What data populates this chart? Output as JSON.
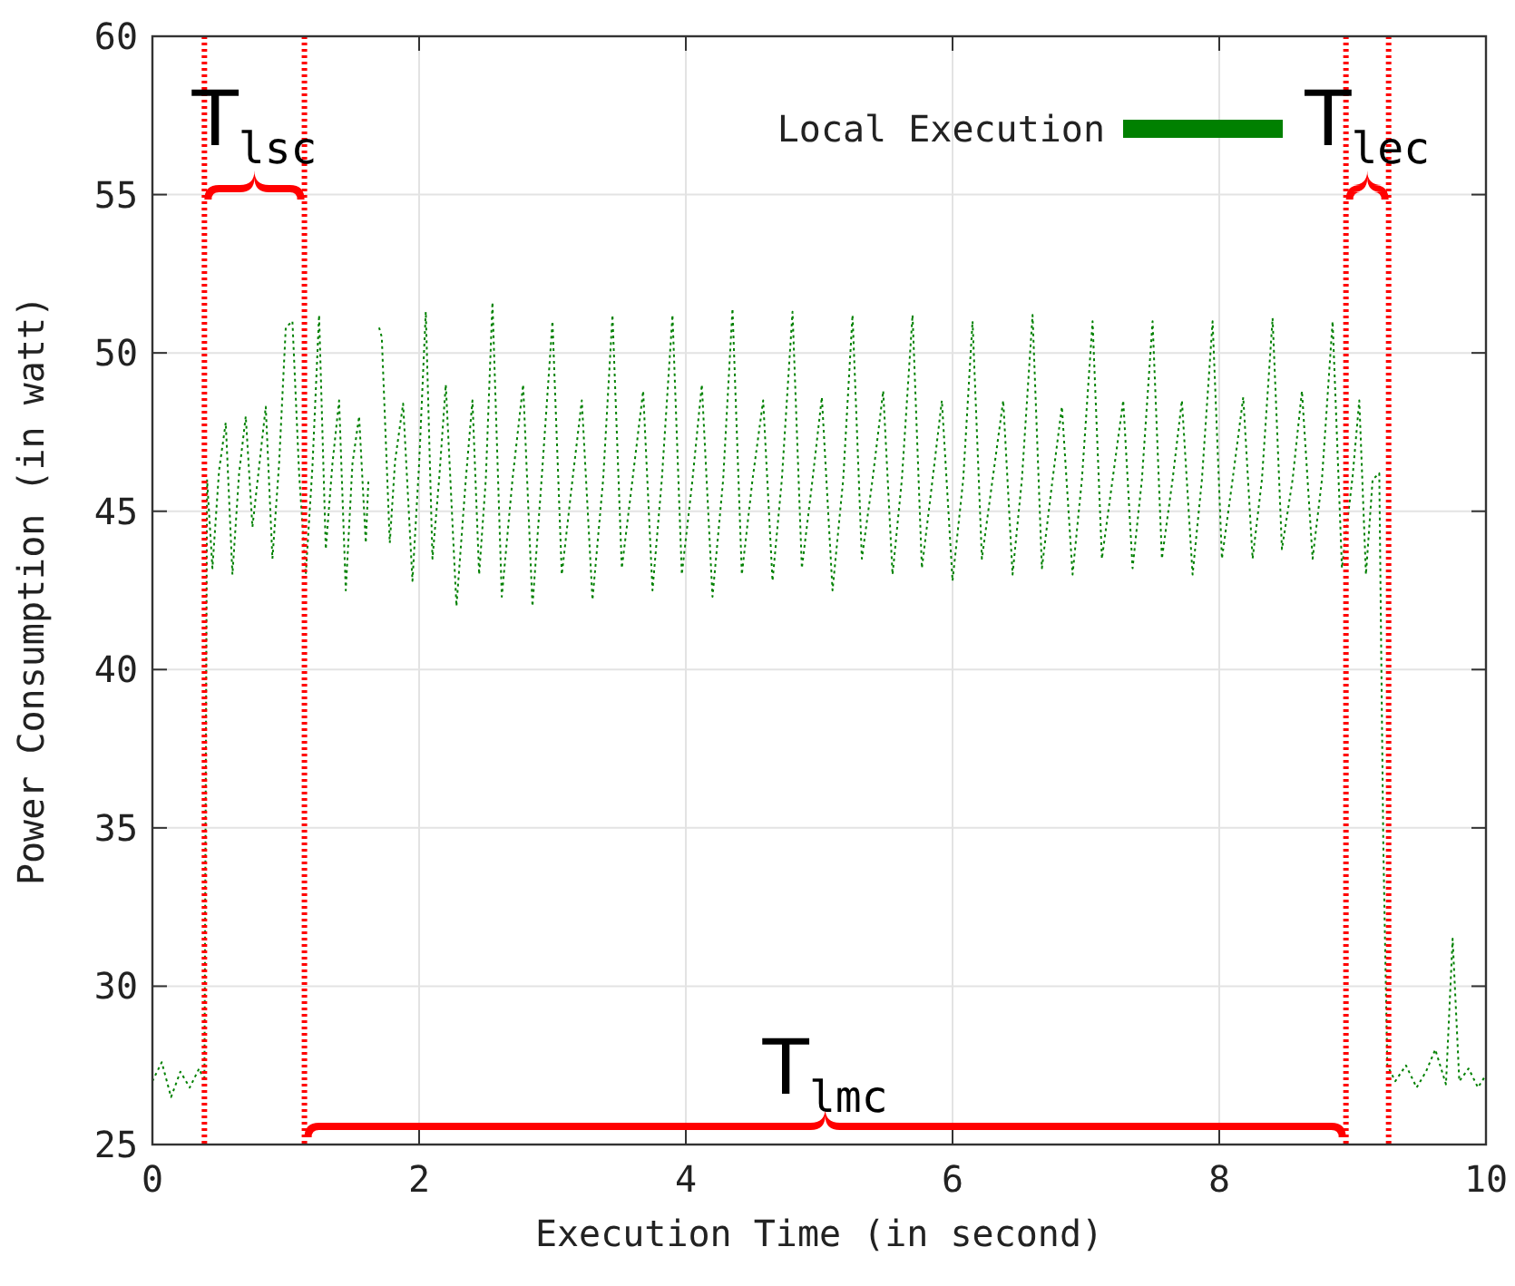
{
  "chart_data": {
    "type": "line",
    "xlabel": "Execution Time (in second)",
    "ylabel": "Power Consumption (in watt)",
    "xlim": [
      0,
      10
    ],
    "xticks": [
      0,
      2,
      4,
      6,
      8,
      10
    ],
    "ylim": [
      25,
      60
    ],
    "yticks": [
      25,
      30,
      35,
      40,
      45,
      50,
      55,
      60
    ],
    "grid": true,
    "legend": "top right",
    "line_style": "dotted",
    "marker": "none",
    "series": [
      {
        "name": "Local Execution",
        "color": "#008000",
        "x": [
          0,
          0.07,
          0.14,
          0.21,
          0.28,
          0.35,
          0.39,
          0.41,
          0.45,
          0.5,
          0.55,
          0.6,
          0.65,
          0.7,
          0.75,
          0.8,
          0.85,
          0.9,
          0.95,
          1.0,
          1.05,
          1.1,
          1.15,
          1.2,
          1.25,
          1.3,
          1.35,
          1.4,
          1.45,
          1.5,
          1.55,
          1.6,
          1.62,
          1.65,
          1.7,
          1.72,
          1.78,
          1.82,
          1.88,
          1.95,
          2.0,
          2.05,
          2.1,
          2.15,
          2.2,
          2.28,
          2.35,
          2.4,
          2.45,
          2.5,
          2.55,
          2.62,
          2.7,
          2.78,
          2.85,
          2.92,
          3.0,
          3.07,
          3.15,
          3.22,
          3.3,
          3.38,
          3.45,
          3.52,
          3.6,
          3.68,
          3.75,
          3.82,
          3.9,
          3.97,
          4.05,
          4.12,
          4.2,
          4.28,
          4.35,
          4.42,
          4.5,
          4.58,
          4.65,
          4.72,
          4.8,
          4.87,
          4.95,
          5.02,
          5.1,
          5.18,
          5.25,
          5.32,
          5.4,
          5.48,
          5.55,
          5.62,
          5.7,
          5.77,
          5.85,
          5.92,
          6.0,
          6.08,
          6.15,
          6.22,
          6.3,
          6.38,
          6.45,
          6.52,
          6.6,
          6.67,
          6.75,
          6.82,
          6.9,
          6.97,
          7.05,
          7.12,
          7.2,
          7.28,
          7.35,
          7.42,
          7.5,
          7.57,
          7.65,
          7.72,
          7.8,
          7.87,
          7.95,
          8.02,
          8.1,
          8.18,
          8.25,
          8.32,
          8.4,
          8.47,
          8.55,
          8.62,
          8.7,
          8.77,
          8.85,
          8.92,
          9.0,
          9.05,
          9.1,
          9.15,
          9.2,
          9.23,
          9.26,
          9.32,
          9.4,
          9.48,
          9.55,
          9.62,
          9.7,
          9.75,
          9.8,
          9.87,
          9.94,
          10
        ],
        "values": [
          27.0,
          27.6,
          26.5,
          27.3,
          26.8,
          27.4,
          27.0,
          46.0,
          43.2,
          46.3,
          47.8,
          43.0,
          46.2,
          48.0,
          44.5,
          46.4,
          48.3,
          43.5,
          46.5,
          50.8,
          51.0,
          46.2,
          43.0,
          46.4,
          51.2,
          43.8,
          46.5,
          48.5,
          42.5,
          46.5,
          48.0,
          44.0,
          46.0,
          null,
          50.8,
          50.5,
          44.0,
          46.6,
          48.4,
          42.8,
          46.5,
          51.3,
          43.5,
          46.0,
          49.0,
          42.0,
          46.0,
          48.5,
          43.0,
          46.0,
          51.6,
          42.3,
          46.0,
          49.0,
          42.0,
          46.1,
          51.0,
          43.0,
          46.0,
          48.5,
          42.2,
          46.0,
          51.2,
          43.2,
          46.0,
          48.8,
          42.5,
          46.0,
          51.2,
          43.0,
          46.0,
          49.0,
          42.3,
          46.0,
          51.4,
          43.0,
          46.0,
          48.5,
          42.8,
          46.0,
          51.3,
          43.2,
          46.0,
          48.6,
          42.5,
          46.0,
          51.2,
          43.5,
          46.0,
          48.8,
          43.0,
          46.0,
          51.2,
          43.2,
          46.0,
          48.5,
          42.8,
          46.0,
          51.0,
          43.5,
          46.0,
          48.5,
          43.0,
          46.0,
          51.2,
          43.2,
          46.0,
          48.3,
          43.0,
          46.0,
          51.0,
          43.5,
          46.0,
          48.5,
          43.2,
          46.0,
          51.0,
          43.5,
          46.0,
          48.5,
          43.0,
          46.0,
          51.0,
          43.5,
          46.0,
          48.6,
          43.5,
          46.0,
          51.1,
          43.8,
          46.0,
          48.8,
          43.5,
          46.0,
          51.0,
          43.2,
          46.1,
          48.5,
          43.0,
          46.0,
          46.2,
          34.5,
          27.5,
          27.0,
          27.5,
          26.8,
          27.3,
          28.0,
          26.9,
          31.5,
          27.0,
          27.4,
          26.8,
          27.2
        ]
      }
    ],
    "ref_lines": [
      {
        "axis": "x",
        "value": 0.39,
        "color": "#ff0000",
        "line_style": "dotted"
      },
      {
        "axis": "x",
        "value": 1.14,
        "color": "#ff0000",
        "line_style": "dotted"
      },
      {
        "axis": "x",
        "value": 8.95,
        "color": "#ff0000",
        "line_style": "dotted"
      },
      {
        "axis": "x",
        "value": 9.27,
        "color": "#ff0000",
        "line_style": "dotted"
      }
    ],
    "annotations": [
      "T$_{lsc}$",
      "T$_{lmc}$",
      "T$_{lec}$"
    ]
  }
}
